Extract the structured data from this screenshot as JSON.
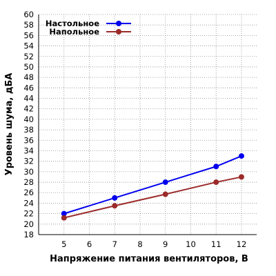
{
  "chart_data": {
    "type": "line",
    "xlabel": "Напряжение питания вентиляторов, В",
    "ylabel": "Уровень шума, дБА",
    "xlim": [
      4,
      12.6
    ],
    "ylim": [
      18,
      60
    ],
    "xticks": [
      5,
      6,
      7,
      8,
      9,
      10,
      11,
      12
    ],
    "yticks": [
      18,
      20,
      22,
      24,
      26,
      28,
      30,
      32,
      34,
      36,
      38,
      40,
      42,
      44,
      46,
      48,
      50,
      52,
      54,
      56,
      58,
      60
    ],
    "grid": true,
    "legend_position": "top-left",
    "series": [
      {
        "name": "Настольное",
        "color": "#0000ee",
        "x": [
          5,
          7,
          9,
          11,
          12
        ],
        "y": [
          22,
          25,
          28,
          31,
          33
        ]
      },
      {
        "name": "Напольное",
        "color": "#9b2a2a",
        "x": [
          5,
          7,
          9,
          11,
          12
        ],
        "y": [
          21.2,
          23.5,
          25.7,
          28,
          29
        ]
      }
    ]
  }
}
